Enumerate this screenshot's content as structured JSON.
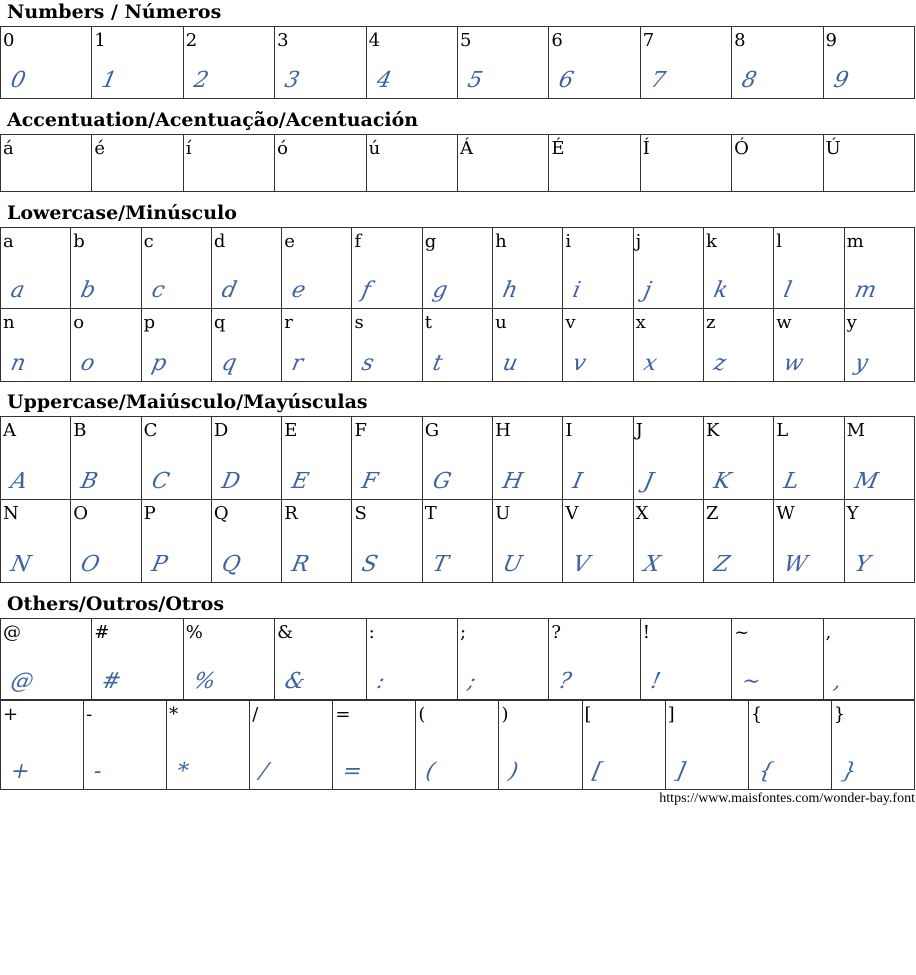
{
  "sections": [
    {
      "title": "Numbers / Números",
      "rows": [
        [
          "0",
          "1",
          "2",
          "3",
          "4",
          "5",
          "6",
          "7",
          "8",
          "9"
        ]
      ]
    },
    {
      "title": "Accentuation/Acentuação/Acentuación",
      "rows": [
        [
          "á",
          "é",
          "í",
          "ó",
          "ú",
          "Á",
          "É",
          "Í",
          "Ó",
          "Ú"
        ]
      ],
      "no_glyph": true
    },
    {
      "title": "Lowercase/Minúsculo",
      "rows": [
        [
          "a",
          "b",
          "c",
          "d",
          "e",
          "f",
          "g",
          "h",
          "i",
          "j",
          "k",
          "l",
          "m"
        ],
        [
          "n",
          "o",
          "p",
          "q",
          "r",
          "s",
          "t",
          "u",
          "v",
          "x",
          "z",
          "w",
          "y"
        ]
      ]
    },
    {
      "title": "Uppercase/Maiúsculo/Mayúsculas",
      "rows": [
        [
          "A",
          "B",
          "C",
          "D",
          "E",
          "F",
          "G",
          "H",
          "I",
          "J",
          "K",
          "L",
          "M"
        ],
        [
          "N",
          "O",
          "P",
          "Q",
          "R",
          "S",
          "T",
          "U",
          "V",
          "X",
          "Z",
          "W",
          "Y"
        ]
      ]
    },
    {
      "title": "Others/Outros/Otros",
      "rows": [
        [
          "@",
          "#",
          "%",
          "&",
          ":",
          ";",
          "?",
          "!",
          "~",
          ","
        ],
        [
          "+",
          "-",
          "*",
          "/",
          "=",
          "(",
          ")",
          "[",
          "]",
          "{",
          "}"
        ]
      ]
    }
  ],
  "url": "https://www.maisfontes.com/wonder-bay.font",
  "colors": {
    "glyph": "#3d64a0",
    "border": "#333333"
  }
}
